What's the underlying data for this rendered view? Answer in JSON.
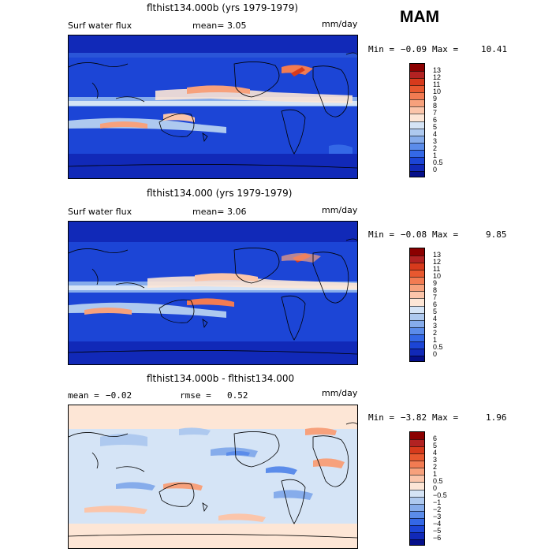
{
  "season": "MAM",
  "panels": [
    {
      "title": "flthist134.000b (yrs 1979-1979)",
      "left_label": "Surf water flux",
      "mean_label": "mean=",
      "mean_value": "3.05",
      "units": "mm/day",
      "min_label": "Min =",
      "min_value": "−0.09",
      "max_label": "Max =",
      "max_value": "10.41",
      "colorbar_ticks": [
        "13",
        "12",
        "11",
        "10",
        "9",
        "8",
        "7",
        "6",
        "5",
        "4",
        "3",
        "2",
        "1",
        "0.5",
        "0"
      ],
      "colorbar_colors": [
        "#8b0000",
        "#b22222",
        "#d73a1c",
        "#e8582f",
        "#f27b52",
        "#f7a17c",
        "#fbc5aa",
        "#fde6d6",
        "#d5e4f6",
        "#aec9ef",
        "#86aceb",
        "#5b8cea",
        "#3468e6",
        "#1c45d6",
        "#1129b8",
        "#050f8a"
      ]
    },
    {
      "title": "flthist134.000 (yrs 1979-1979)",
      "left_label": "Surf water flux",
      "mean_label": "mean=",
      "mean_value": "3.06",
      "units": "mm/day",
      "min_label": "Min =",
      "min_value": "−0.08",
      "max_label": "Max =",
      "max_value": "9.85",
      "colorbar_ticks": [
        "13",
        "12",
        "11",
        "10",
        "9",
        "8",
        "7",
        "6",
        "5",
        "4",
        "3",
        "2",
        "1",
        "0.5",
        "0"
      ],
      "colorbar_colors": [
        "#8b0000",
        "#b22222",
        "#d73a1c",
        "#e8582f",
        "#f27b52",
        "#f7a17c",
        "#fbc5aa",
        "#fde6d6",
        "#d5e4f6",
        "#aec9ef",
        "#86aceb",
        "#5b8cea",
        "#3468e6",
        "#1c45d6",
        "#1129b8",
        "#050f8a"
      ]
    },
    {
      "title": "flthist134.000b - flthist134.000",
      "left_label": "mean =",
      "left_value": "−0.02",
      "mid_label": "rmse =",
      "mid_value": "0.52",
      "units": "mm/day",
      "min_label": "Min =",
      "min_value": "−3.82",
      "max_label": "Max =",
      "max_value": "1.96",
      "colorbar_ticks": [
        "6",
        "5",
        "4",
        "3",
        "2",
        "1",
        "0.5",
        "0",
        "−0.5",
        "−1",
        "−2",
        "−3",
        "−4",
        "−5",
        "−6"
      ],
      "colorbar_colors": [
        "#8b0000",
        "#b22222",
        "#d73a1c",
        "#e8582f",
        "#f27b52",
        "#f7a17c",
        "#fbc5aa",
        "#fde6d6",
        "#d5e4f6",
        "#aec9ef",
        "#86aceb",
        "#5b8cea",
        "#3468e6",
        "#1c45d6",
        "#1129b8",
        "#050f8a"
      ]
    }
  ]
}
